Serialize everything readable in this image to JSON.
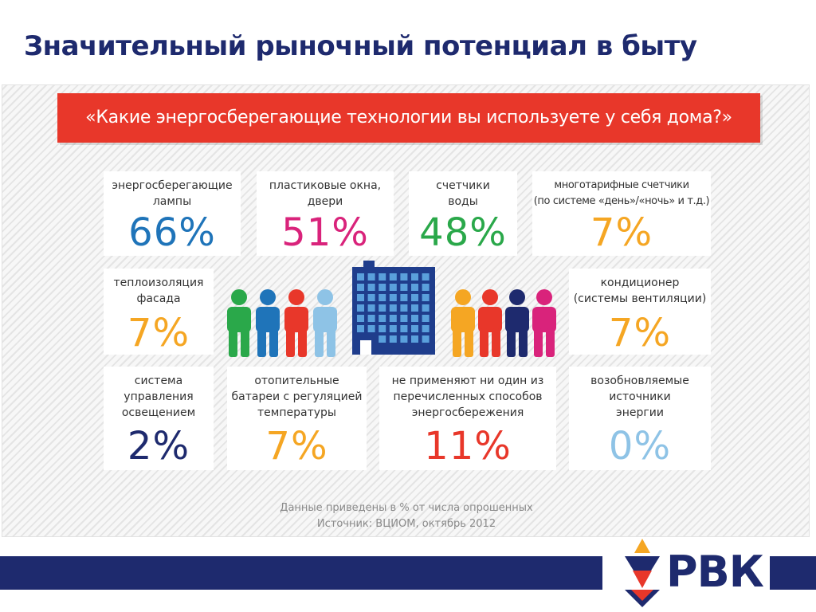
{
  "slide": {
    "title": "Значительный рыночный потенциал в быту"
  },
  "infographic": {
    "question": "«Какие энергосберегающие технологии вы используете у себя дома?»",
    "cards": [
      {
        "label": "энергосберегающие\nлампы",
        "value": "66%",
        "color": "#1f74b9"
      },
      {
        "label": "пластиковые окна,\nдвери",
        "value": "51%",
        "color": "#d9237b"
      },
      {
        "label": "счетчики\nводы",
        "value": "48%",
        "color": "#2aa84a"
      },
      {
        "label": "многотарифные счетчики\n(по системе «день»/«ночь» и т.д.)",
        "value": "7%",
        "color": "#f5a623"
      },
      {
        "label": "теплоизоляция\nфасада",
        "value": "7%",
        "color": "#f5a623"
      },
      {
        "label": "кондиционер\n(системы вентиляции)",
        "value": "7%",
        "color": "#f5a623"
      },
      {
        "label": "система\nуправления\nосвещением",
        "value": "2%",
        "color": "#1e2a6e"
      },
      {
        "label": "отопительные\nбатареи с регуляцией\nтемпературы",
        "value": "7%",
        "color": "#f5a623"
      },
      {
        "label": "не применяют ни один из\nперечисленных способов\nэнергосбережения",
        "value": "11%",
        "color": "#e8372a"
      },
      {
        "label": "возобновляемые\nисточники\nэнергии",
        "value": "0%",
        "color": "#8ec3e6"
      }
    ],
    "people_left_colors": [
      "#2aa84a",
      "#1f74b9",
      "#e8372a",
      "#8ec3e6"
    ],
    "people_right_colors": [
      "#f5a623",
      "#e8372a",
      "#1e2a6e",
      "#d9237b"
    ],
    "building_color": "#1f3d8c",
    "footnote_line1": "Данные приведены в % от числа опрошенных",
    "footnote_line2": "Источник: ВЦИОМ, октябрь 2012"
  },
  "logo": {
    "text": "РВК"
  }
}
